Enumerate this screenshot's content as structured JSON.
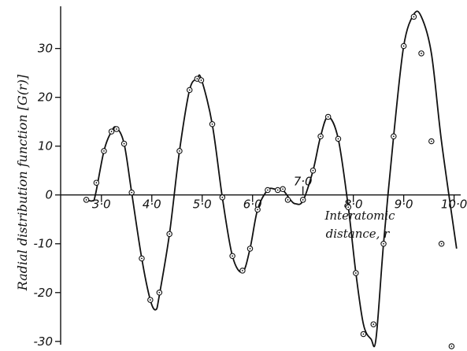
{
  "chart_data": {
    "type": "line",
    "ylabel": "Radial distribution function [G(r)]",
    "xlabel_line1": "Interatomic",
    "xlabel_line2": "distance, r",
    "xlim": [
      2.55,
      10.1
    ],
    "ylim": [
      -31,
      38
    ],
    "x_ticks": [
      3.0,
      4.0,
      5.0,
      6.0,
      7.0,
      8.0,
      9.0,
      10.0
    ],
    "x_tick_labels": [
      "3·0",
      "4·0",
      "5·0",
      "6·0",
      "7·0",
      "8·0",
      "9·0",
      "10·0"
    ],
    "y_ticks": [
      -30,
      -20,
      -10,
      0,
      10,
      20,
      30
    ],
    "y_tick_labels": [
      "-30",
      "-20",
      "-10",
      "0",
      "10",
      "20",
      "30"
    ],
    "points_x": [
      2.7,
      2.9,
      3.05,
      3.2,
      3.3,
      3.45,
      3.6,
      3.8,
      3.97,
      4.15,
      4.35,
      4.55,
      4.75,
      4.9,
      4.98,
      5.2,
      5.4,
      5.6,
      5.8,
      5.95,
      6.1,
      6.3,
      6.5,
      6.6,
      6.7,
      7.0,
      7.2,
      7.35,
      7.5,
      7.7,
      7.9,
      8.05,
      8.2,
      8.4,
      8.6,
      8.8,
      9.0,
      9.2,
      9.35,
      9.55,
      9.75,
      9.95
    ],
    "points_y": [
      -1,
      2.5,
      9,
      13,
      13.5,
      10.5,
      0.5,
      -13,
      -21.5,
      -20,
      -8,
      9,
      21.5,
      23.8,
      23.5,
      14.5,
      -0.5,
      -12.5,
      -15.5,
      -11,
      -3,
      1,
      1,
      1.2,
      -1,
      -1,
      5,
      12,
      16,
      11.5,
      -2.5,
      -16,
      -28.5,
      -26.5,
      -10,
      12,
      30.5,
      36.5,
      29,
      11,
      -10,
      -31
    ],
    "curve_x": [
      2.7,
      2.82,
      2.88,
      3.05,
      3.2,
      3.3,
      3.45,
      3.6,
      3.8,
      3.97,
      4.08,
      4.15,
      4.35,
      4.55,
      4.75,
      4.9,
      4.98,
      5.2,
      5.4,
      5.6,
      5.8,
      5.95,
      6.1,
      6.3,
      6.45,
      6.6,
      6.75,
      6.85,
      7.0,
      7.2,
      7.35,
      7.5,
      7.7,
      7.9,
      8.05,
      8.2,
      8.35,
      8.45,
      8.6,
      8.8,
      9.0,
      9.2,
      9.35,
      9.55,
      9.75,
      10.05
    ],
    "curve_y": [
      -1,
      -1.2,
      0,
      9,
      13,
      13.8,
      10.5,
      0.5,
      -13,
      -21.5,
      -23.5,
      -20.5,
      -8,
      9,
      21.5,
      23.8,
      23.8,
      14.5,
      -0.5,
      -12.5,
      -15.8,
      -11,
      -3,
      1,
      1.2,
      1,
      -1,
      -1.8,
      -1.2,
      5,
      12,
      16,
      11.5,
      -2.5,
      -16,
      -26.5,
      -29.5,
      -29.5,
      -10,
      12,
      30.5,
      37,
      36.5,
      29,
      11,
      -11
    ]
  }
}
